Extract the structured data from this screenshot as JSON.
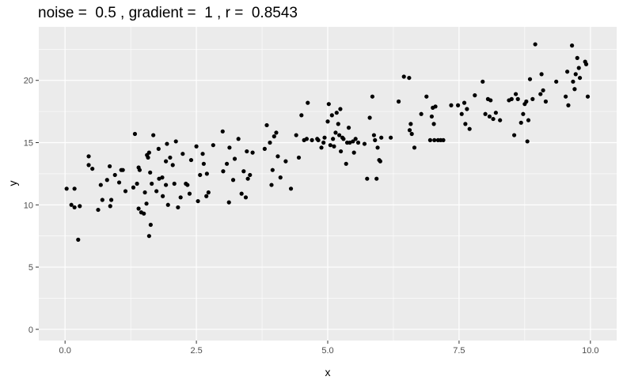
{
  "chart_data": {
    "type": "scatter",
    "title": "noise =  0.5 , gradient =  1 , r =  0.8543",
    "xlabel": "x",
    "ylabel": "y",
    "xlim": [
      -0.5,
      10.5
    ],
    "ylim": [
      -0.9,
      24.3
    ],
    "x_ticks": [
      0,
      2.5,
      5,
      7.5,
      10
    ],
    "x_tick_labels": [
      "0.0",
      "2.5",
      "5.0",
      "7.5",
      "10.0"
    ],
    "y_ticks": [
      0,
      5,
      10,
      15,
      20
    ],
    "y_tick_labels": [
      "0",
      "5",
      "10",
      "15",
      "20"
    ],
    "grid": true,
    "legend": "none",
    "point_color": "#000000",
    "panel_background": "#ebebeb",
    "grid_color": "#ffffff",
    "points": [
      [
        0.03,
        11.3
      ],
      [
        0.12,
        10.0
      ],
      [
        0.18,
        9.8
      ],
      [
        0.18,
        11.3
      ],
      [
        0.25,
        7.2
      ],
      [
        0.28,
        9.9
      ],
      [
        0.45,
        13.9
      ],
      [
        0.45,
        13.2
      ],
      [
        0.52,
        12.9
      ],
      [
        0.63,
        9.6
      ],
      [
        0.68,
        11.6
      ],
      [
        0.71,
        10.4
      ],
      [
        0.8,
        12.0
      ],
      [
        0.85,
        13.1
      ],
      [
        0.86,
        9.9
      ],
      [
        0.88,
        10.4
      ],
      [
        0.95,
        12.4
      ],
      [
        1.03,
        11.8
      ],
      [
        1.07,
        12.8
      ],
      [
        1.1,
        12.8
      ],
      [
        1.15,
        11.1
      ],
      [
        1.3,
        11.4
      ],
      [
        1.33,
        15.7
      ],
      [
        1.37,
        11.7
      ],
      [
        1.4,
        13.0
      ],
      [
        1.4,
        9.7
      ],
      [
        1.42,
        12.8
      ],
      [
        1.45,
        9.4
      ],
      [
        1.5,
        9.3
      ],
      [
        1.52,
        11.0
      ],
      [
        1.55,
        10.1
      ],
      [
        1.56,
        14.0
      ],
      [
        1.58,
        13.8
      ],
      [
        1.6,
        7.5
      ],
      [
        1.6,
        14.2
      ],
      [
        1.62,
        12.6
      ],
      [
        1.63,
        8.4
      ],
      [
        1.65,
        11.7
      ],
      [
        1.68,
        15.6
      ],
      [
        1.74,
        11.1
      ],
      [
        1.78,
        14.5
      ],
      [
        1.79,
        12.1
      ],
      [
        1.85,
        12.2
      ],
      [
        1.86,
        10.7
      ],
      [
        1.92,
        11.6
      ],
      [
        1.92,
        13.5
      ],
      [
        1.94,
        14.9
      ],
      [
        1.96,
        10.0
      ],
      [
        2.0,
        13.8
      ],
      [
        2.05,
        13.2
      ],
      [
        2.08,
        11.7
      ],
      [
        2.11,
        15.1
      ],
      [
        2.15,
        9.8
      ],
      [
        2.2,
        10.6
      ],
      [
        2.24,
        14.1
      ],
      [
        2.3,
        11.7
      ],
      [
        2.33,
        11.6
      ],
      [
        2.37,
        10.9
      ],
      [
        2.4,
        13.6
      ],
      [
        2.5,
        14.7
      ],
      [
        2.53,
        10.3
      ],
      [
        2.57,
        12.4
      ],
      [
        2.62,
        14.1
      ],
      [
        2.64,
        13.3
      ],
      [
        2.69,
        10.7
      ],
      [
        2.7,
        12.5
      ],
      [
        2.73,
        11.0
      ],
      [
        2.82,
        14.8
      ],
      [
        3.0,
        15.9
      ],
      [
        3.01,
        12.7
      ],
      [
        3.08,
        13.3
      ],
      [
        3.12,
        10.2
      ],
      [
        3.13,
        14.6
      ],
      [
        3.2,
        12.0
      ],
      [
        3.23,
        13.7
      ],
      [
        3.3,
        15.3
      ],
      [
        3.36,
        10.9
      ],
      [
        3.4,
        12.7
      ],
      [
        3.44,
        10.6
      ],
      [
        3.46,
        14.3
      ],
      [
        3.48,
        12.1
      ],
      [
        3.52,
        12.4
      ],
      [
        3.57,
        14.2
      ],
      [
        3.8,
        14.5
      ],
      [
        3.84,
        16.4
      ],
      [
        3.9,
        15.0
      ],
      [
        3.93,
        11.6
      ],
      [
        3.95,
        12.8
      ],
      [
        3.98,
        15.5
      ],
      [
        4.02,
        15.8
      ],
      [
        4.05,
        13.9
      ],
      [
        4.1,
        12.2
      ],
      [
        4.2,
        13.5
      ],
      [
        4.3,
        11.3
      ],
      [
        4.4,
        15.6
      ],
      [
        4.45,
        13.8
      ],
      [
        4.5,
        17.2
      ],
      [
        4.55,
        15.2
      ],
      [
        4.6,
        15.3
      ],
      [
        4.62,
        18.2
      ],
      [
        4.7,
        15.2
      ],
      [
        4.8,
        15.3
      ],
      [
        4.82,
        15.2
      ],
      [
        4.88,
        14.6
      ],
      [
        4.92,
        15.0
      ],
      [
        4.94,
        15.4
      ],
      [
        5.0,
        16.7
      ],
      [
        5.02,
        18.1
      ],
      [
        5.05,
        14.8
      ],
      [
        5.08,
        17.2
      ],
      [
        5.1,
        15.3
      ],
      [
        5.12,
        14.7
      ],
      [
        5.15,
        15.8
      ],
      [
        5.17,
        17.4
      ],
      [
        5.2,
        16.5
      ],
      [
        5.22,
        15.6
      ],
      [
        5.24,
        17.7
      ],
      [
        5.25,
        14.3
      ],
      [
        5.28,
        15.4
      ],
      [
        5.3,
        15.3
      ],
      [
        5.35,
        13.3
      ],
      [
        5.37,
        15.0
      ],
      [
        5.4,
        16.2
      ],
      [
        5.42,
        15.0
      ],
      [
        5.48,
        15.1
      ],
      [
        5.5,
        14.2
      ],
      [
        5.53,
        15.3
      ],
      [
        5.58,
        15.0
      ],
      [
        5.7,
        14.9
      ],
      [
        5.75,
        12.1
      ],
      [
        5.8,
        17.0
      ],
      [
        5.85,
        18.7
      ],
      [
        5.88,
        15.6
      ],
      [
        5.9,
        15.2
      ],
      [
        5.93,
        12.1
      ],
      [
        5.95,
        14.6
      ],
      [
        5.98,
        13.6
      ],
      [
        6.0,
        13.5
      ],
      [
        6.02,
        15.4
      ],
      [
        6.2,
        15.4
      ],
      [
        6.35,
        18.3
      ],
      [
        6.45,
        20.3
      ],
      [
        6.55,
        20.2
      ],
      [
        6.56,
        16.0
      ],
      [
        6.58,
        16.5
      ],
      [
        6.6,
        15.7
      ],
      [
        6.65,
        14.6
      ],
      [
        6.78,
        17.3
      ],
      [
        6.88,
        18.7
      ],
      [
        6.95,
        15.2
      ],
      [
        6.98,
        17.1
      ],
      [
        7.0,
        17.8
      ],
      [
        7.02,
        16.5
      ],
      [
        7.03,
        15.2
      ],
      [
        7.05,
        17.9
      ],
      [
        7.1,
        15.2
      ],
      [
        7.15,
        15.2
      ],
      [
        7.2,
        15.2
      ],
      [
        7.35,
        18.0
      ],
      [
        7.48,
        18.0
      ],
      [
        7.55,
        17.3
      ],
      [
        7.6,
        18.2
      ],
      [
        7.62,
        16.5
      ],
      [
        7.65,
        17.7
      ],
      [
        7.7,
        16.1
      ],
      [
        7.8,
        18.8
      ],
      [
        7.95,
        19.9
      ],
      [
        8.0,
        17.3
      ],
      [
        8.05,
        18.5
      ],
      [
        8.08,
        17.1
      ],
      [
        8.1,
        18.4
      ],
      [
        8.15,
        16.9
      ],
      [
        8.2,
        17.4
      ],
      [
        8.28,
        16.8
      ],
      [
        8.45,
        18.4
      ],
      [
        8.5,
        18.5
      ],
      [
        8.55,
        15.6
      ],
      [
        8.58,
        18.9
      ],
      [
        8.62,
        18.5
      ],
      [
        8.68,
        16.6
      ],
      [
        8.72,
        17.3
      ],
      [
        8.75,
        18.1
      ],
      [
        8.78,
        18.3
      ],
      [
        8.8,
        15.1
      ],
      [
        8.82,
        16.8
      ],
      [
        8.85,
        20.1
      ],
      [
        8.9,
        18.5
      ],
      [
        8.95,
        22.9
      ],
      [
        9.05,
        18.9
      ],
      [
        9.07,
        20.5
      ],
      [
        9.1,
        19.2
      ],
      [
        9.15,
        18.3
      ],
      [
        9.35,
        19.9
      ],
      [
        9.53,
        18.7
      ],
      [
        9.56,
        20.7
      ],
      [
        9.58,
        18.0
      ],
      [
        9.65,
        22.8
      ],
      [
        9.67,
        19.9
      ],
      [
        9.7,
        19.3
      ],
      [
        9.72,
        20.5
      ],
      [
        9.75,
        21.8
      ],
      [
        9.78,
        21.0
      ],
      [
        9.8,
        20.2
      ],
      [
        9.9,
        21.5
      ],
      [
        9.92,
        21.3
      ],
      [
        9.95,
        18.7
      ]
    ]
  }
}
